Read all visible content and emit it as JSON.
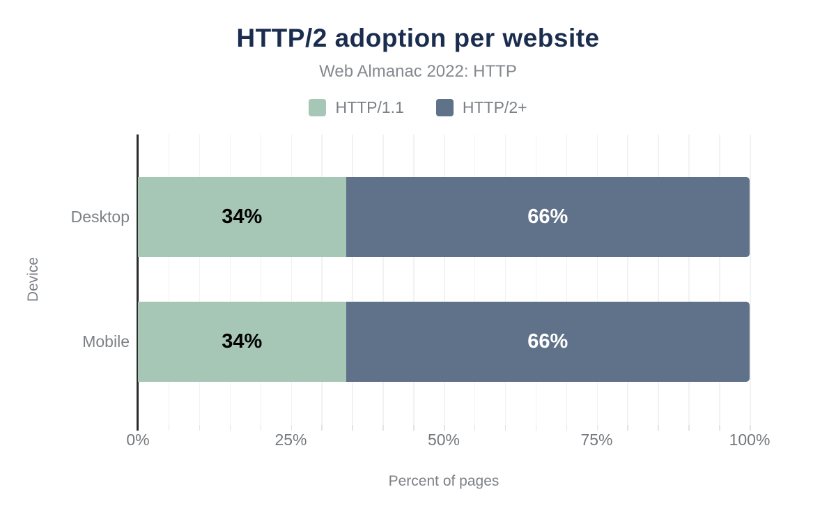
{
  "chart_data": {
    "type": "bar",
    "orientation": "horizontal",
    "stacked": true,
    "title": "HTTP/2 adoption per website",
    "subtitle": "Web Almanac 2022: HTTP",
    "categories": [
      "Desktop",
      "Mobile"
    ],
    "series": [
      {
        "name": "HTTP/1.1",
        "color": "#a7c7b6",
        "label_color": "#000000",
        "values": [
          34,
          34
        ],
        "value_labels": [
          "34%",
          "34%"
        ]
      },
      {
        "name": "HTTP/2+",
        "color": "#5f7289",
        "label_color": "#ffffff",
        "values": [
          66,
          66
        ],
        "value_labels": [
          "66%",
          "66%"
        ]
      }
    ],
    "xlabel": "Percent of pages",
    "ylabel": "Device",
    "xlim": [
      0,
      100
    ],
    "x_ticks": [
      {
        "value": 0,
        "label": "0%"
      },
      {
        "value": 25,
        "label": "25%"
      },
      {
        "value": 50,
        "label": "50%"
      },
      {
        "value": 75,
        "label": "75%"
      },
      {
        "value": 100,
        "label": "100%"
      }
    ],
    "grid_step": 5,
    "grid": true,
    "legend_position": "top"
  },
  "colors": {
    "title": "#1b2d4f",
    "secondary_text": "#7c8085",
    "axis_line": "#2b2b2b",
    "gridline": "#f1f2f3",
    "background": "#ffffff"
  }
}
